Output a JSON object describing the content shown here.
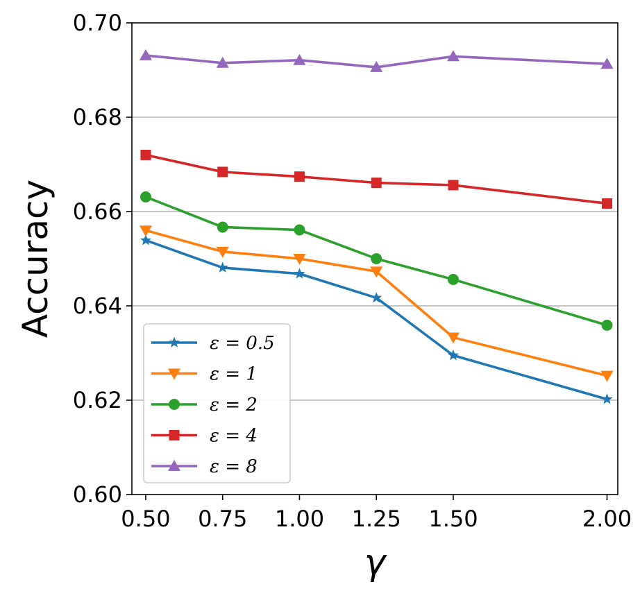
{
  "chart_data": {
    "type": "line",
    "title": "",
    "xlabel": "γ",
    "ylabel": "Accuracy",
    "x": [
      0.5,
      0.75,
      1.0,
      1.25,
      1.5,
      2.0
    ],
    "xticks": [
      0.5,
      0.75,
      1.0,
      1.25,
      1.5,
      2.0
    ],
    "xtick_labels": [
      "0.50",
      "0.75",
      "1.00",
      "1.25",
      "1.50",
      "2.00"
    ],
    "xlim": [
      0.455,
      2.035
    ],
    "ylim": [
      0.6,
      0.7
    ],
    "yticks": [
      0.6,
      0.62,
      0.64,
      0.66,
      0.68,
      0.7
    ],
    "ytick_labels": [
      "0.60",
      "0.62",
      "0.64",
      "0.66",
      "0.68",
      "0.70"
    ],
    "grid": "horizontal",
    "legend_position": "lower-left",
    "series": [
      {
        "name": "ε = 0.5",
        "color": "#1f77b4",
        "marker": "star",
        "values": [
          0.6539,
          0.6481,
          0.6468,
          0.6417,
          0.6295,
          0.6202
        ]
      },
      {
        "name": "ε = 1",
        "color": "#ff7f0e",
        "marker": "triangle-down",
        "values": [
          0.656,
          0.6515,
          0.65,
          0.6473,
          0.6333,
          0.6252
        ]
      },
      {
        "name": "ε = 2",
        "color": "#2ca02c",
        "marker": "circle",
        "values": [
          0.6631,
          0.6567,
          0.6561,
          0.65,
          0.6456,
          0.6359
        ]
      },
      {
        "name": "ε = 4",
        "color": "#d62728",
        "marker": "square",
        "values": [
          0.672,
          0.6684,
          0.6674,
          0.6661,
          0.6656,
          0.6617
        ]
      },
      {
        "name": "ε = 8",
        "color": "#9467bd",
        "marker": "triangle-up",
        "values": [
          0.6931,
          0.6915,
          0.6921,
          0.6906,
          0.6929,
          0.6913
        ]
      }
    ]
  }
}
